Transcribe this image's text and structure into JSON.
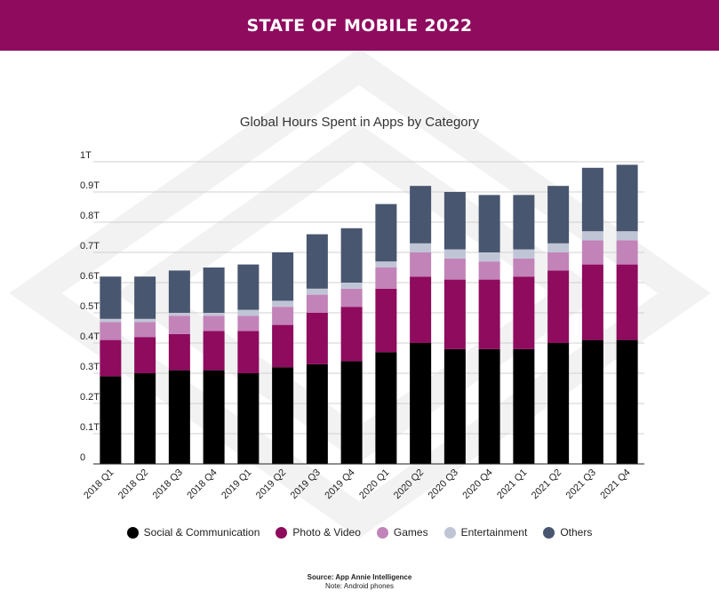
{
  "header": {
    "title": "STATE OF MOBILE 2022"
  },
  "colors": {
    "banner": "#8e0b5e",
    "series": [
      "#000000",
      "#8e0b5e",
      "#c283b8",
      "#c0c5d6",
      "#48566f"
    ]
  },
  "chart_data": {
    "type": "bar",
    "stacked": true,
    "title": "Global Hours Spent in Apps by Category",
    "xlabel": "",
    "ylabel": "",
    "ylim": [
      0,
      1.0
    ],
    "yticks": [
      "0",
      "0.1T",
      "0.2T",
      "0.3T",
      "0.4T",
      "0.5T",
      "0.6T",
      "0.7T",
      "0.8T",
      "0.9T",
      "1T"
    ],
    "grid": true,
    "legend_position": "bottom",
    "categories": [
      "2018 Q1",
      "2018 Q2",
      "2018 Q3",
      "2018 Q4",
      "2019 Q1",
      "2019 Q2",
      "2019 Q3",
      "2019 Q4",
      "2020 Q1",
      "2020 Q2",
      "2020 Q3",
      "2020 Q4",
      "2021 Q1",
      "2021 Q2",
      "2021 Q3",
      "2021 Q4"
    ],
    "series": [
      {
        "name": "Social & Communication",
        "values": [
          0.29,
          0.3,
          0.31,
          0.31,
          0.3,
          0.32,
          0.33,
          0.34,
          0.37,
          0.4,
          0.38,
          0.38,
          0.38,
          0.4,
          0.41,
          0.41
        ]
      },
      {
        "name": "Photo & Video",
        "values": [
          0.12,
          0.12,
          0.12,
          0.13,
          0.14,
          0.14,
          0.17,
          0.18,
          0.21,
          0.22,
          0.23,
          0.23,
          0.24,
          0.24,
          0.25,
          0.25
        ]
      },
      {
        "name": "Games",
        "values": [
          0.06,
          0.05,
          0.06,
          0.05,
          0.05,
          0.06,
          0.06,
          0.06,
          0.07,
          0.08,
          0.07,
          0.06,
          0.06,
          0.06,
          0.08,
          0.08
        ]
      },
      {
        "name": "Entertainment",
        "values": [
          0.01,
          0.01,
          0.01,
          0.01,
          0.02,
          0.02,
          0.02,
          0.02,
          0.02,
          0.03,
          0.03,
          0.03,
          0.03,
          0.03,
          0.03,
          0.03
        ]
      },
      {
        "name": "Others",
        "values": [
          0.14,
          0.14,
          0.14,
          0.15,
          0.15,
          0.16,
          0.18,
          0.18,
          0.19,
          0.19,
          0.19,
          0.19,
          0.18,
          0.19,
          0.21,
          0.22
        ]
      }
    ]
  },
  "legend": [
    "Social & Communication",
    "Photo & Video",
    "Games",
    "Entertainment",
    "Others"
  ],
  "footer": {
    "source": "Source: App Annie Intelligence",
    "note": "Note: Android phones"
  }
}
